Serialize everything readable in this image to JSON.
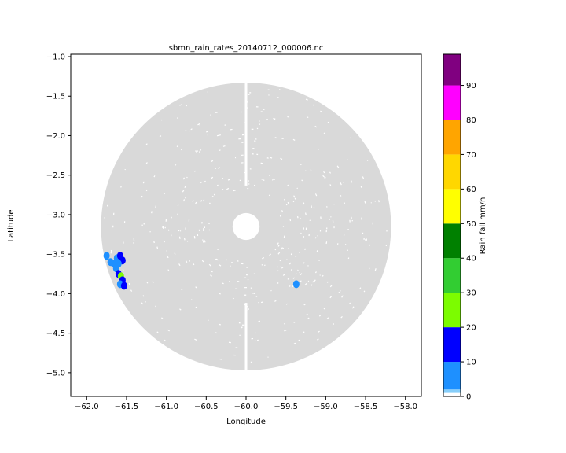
{
  "chart_data": {
    "type": "heatmap",
    "title": "sbmn_rain_rates_20140712_000006.nc",
    "xlabel": "Longitude",
    "ylabel": "Latitude",
    "xlim": [
      -62.2,
      -57.8
    ],
    "ylim": [
      -5.3,
      -0.97
    ],
    "xticks": [
      -62.0,
      -61.5,
      -61.0,
      -60.5,
      -60.0,
      -59.5,
      -59.0,
      -58.5,
      -58.0
    ],
    "xtick_labels": [
      "−62.0",
      "−61.5",
      "−61.0",
      "−60.5",
      "−60.0",
      "−59.5",
      "−59.0",
      "−58.5",
      "−58.0"
    ],
    "yticks": [
      -1.0,
      -1.5,
      -2.0,
      -2.5,
      -3.0,
      -3.5,
      -4.0,
      -4.5,
      -5.0
    ],
    "ytick_labels": [
      "−1.0",
      "−1.5",
      "−2.0",
      "−2.5",
      "−3.0",
      "−3.5",
      "−4.0",
      "−4.5",
      "−5.0"
    ],
    "grid": false,
    "radar_coverage": {
      "center": [
        -60.0,
        -3.15
      ],
      "outer_radius_deg": 1.82,
      "inner_radius_deg": 0.17,
      "color": "#d9d9d9"
    },
    "rain_cells": [
      {
        "lon": -61.62,
        "lat": -3.55,
        "value": 5
      },
      {
        "lon": -61.58,
        "lat": -3.52,
        "value": 12
      },
      {
        "lon": -61.55,
        "lat": -3.58,
        "value": 18
      },
      {
        "lon": -61.6,
        "lat": -3.62,
        "value": 8
      },
      {
        "lon": -61.63,
        "lat": -3.68,
        "value": 6
      },
      {
        "lon": -61.6,
        "lat": -3.75,
        "value": 14
      },
      {
        "lon": -61.57,
        "lat": -3.78,
        "value": 25
      },
      {
        "lon": -61.55,
        "lat": -3.83,
        "value": 16
      },
      {
        "lon": -61.58,
        "lat": -3.88,
        "value": 9
      },
      {
        "lon": -61.53,
        "lat": -3.9,
        "value": 12
      },
      {
        "lon": -61.66,
        "lat": -3.62,
        "value": 3
      },
      {
        "lon": -61.7,
        "lat": -3.6,
        "value": 4
      },
      {
        "lon": -61.75,
        "lat": -3.52,
        "value": 3
      },
      {
        "lon": -59.37,
        "lat": -3.88,
        "value": 7
      }
    ],
    "colorbar": {
      "label": "Rain fall mm/h",
      "min": 0,
      "max": 99,
      "ticks": [
        0,
        10,
        20,
        30,
        40,
        50,
        60,
        70,
        80,
        90
      ],
      "tick_labels": [
        "0",
        "10",
        "20",
        "30",
        "40",
        "50",
        "60",
        "70",
        "80",
        "90"
      ],
      "bins": [
        {
          "from": 0,
          "to": 1,
          "color": "#ffffff"
        },
        {
          "from": 1,
          "to": 2,
          "color": "#87cefa"
        },
        {
          "from": 2,
          "to": 10,
          "color": "#1e90ff"
        },
        {
          "from": 10,
          "to": 20,
          "color": "#0000ff"
        },
        {
          "from": 20,
          "to": 30,
          "color": "#7cfc00"
        },
        {
          "from": 30,
          "to": 40,
          "color": "#32cd32"
        },
        {
          "from": 40,
          "to": 50,
          "color": "#008000"
        },
        {
          "from": 50,
          "to": 60,
          "color": "#ffff00"
        },
        {
          "from": 60,
          "to": 70,
          "color": "#ffd700"
        },
        {
          "from": 70,
          "to": 80,
          "color": "#ffa500"
        },
        {
          "from": 80,
          "to": 90,
          "color": "#ff00ff"
        },
        {
          "from": 90,
          "to": 99,
          "color": "#800080"
        }
      ]
    }
  }
}
